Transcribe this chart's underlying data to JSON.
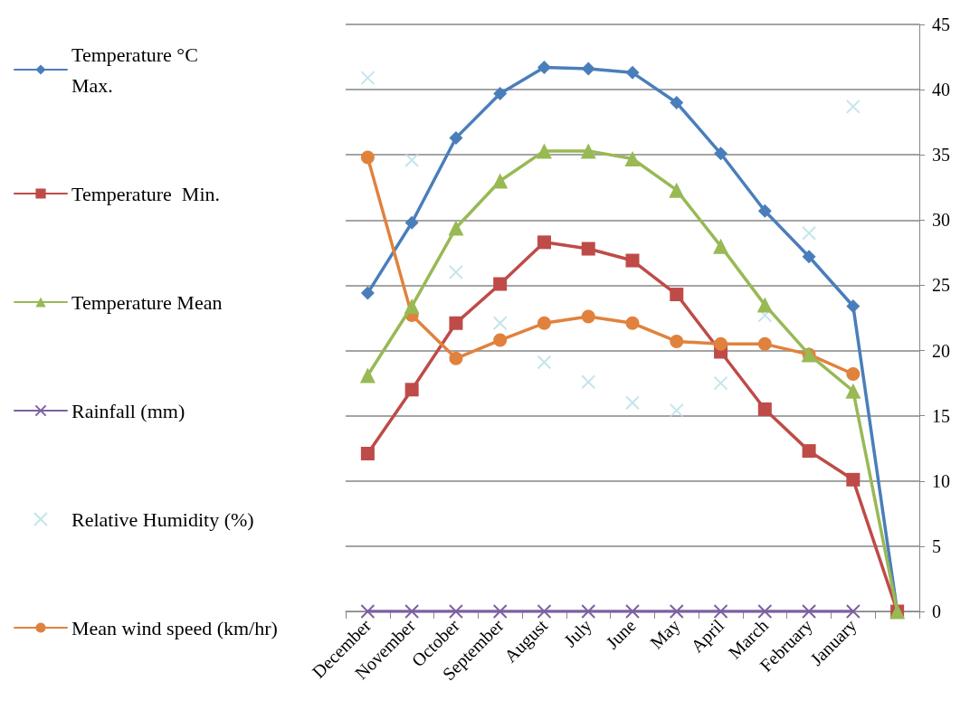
{
  "chart_data": {
    "type": "line",
    "categories": [
      "December",
      "November",
      "October",
      "September",
      "August",
      "July",
      "June",
      "May",
      "April",
      "March",
      "February",
      "January",
      null
    ],
    "ylim": [
      0,
      45
    ],
    "yticks": [
      0,
      5,
      10,
      15,
      20,
      25,
      30,
      35,
      40,
      45
    ],
    "grid": "y",
    "legend": "left",
    "series": [
      {
        "name": "Temperature °C\nMax.",
        "color": "#4a7ebb",
        "marker": "diamond",
        "values": [
          24.4,
          29.8,
          36.3,
          39.7,
          41.7,
          41.6,
          41.3,
          39.0,
          35.1,
          30.7,
          27.2,
          23.4,
          0
        ]
      },
      {
        "name": "Temperature  Min.",
        "color": "#be4b48",
        "marker": "square",
        "values": [
          12.1,
          17.0,
          22.1,
          25.1,
          28.3,
          27.8,
          26.9,
          24.3,
          19.9,
          15.5,
          12.3,
          10.1,
          0
        ]
      },
      {
        "name": "Temperature Mean",
        "color": "#98b954",
        "marker": "triangle",
        "values": [
          18.1,
          23.4,
          29.4,
          33.0,
          35.3,
          35.3,
          34.7,
          32.3,
          28.0,
          23.5,
          19.7,
          16.9,
          0
        ]
      },
      {
        "name": "Rainfall (mm)",
        "color": "#7d60a0",
        "marker": "cross",
        "values": [
          0,
          0,
          0,
          0,
          0,
          0,
          0,
          0,
          0,
          0,
          0,
          0,
          null
        ]
      },
      {
        "name": "Relative Humidity (%)",
        "color": "#b7dde8",
        "type": "scatter",
        "marker": "cross",
        "values": [
          40.9,
          34.6,
          26.0,
          22.1,
          19.1,
          17.6,
          16.0,
          15.4,
          17.5,
          22.7,
          29.0,
          38.7,
          null
        ]
      },
      {
        "name": "Mean wind speed (km/hr)",
        "color": "#e0823d",
        "marker": "circle",
        "values": [
          34.8,
          22.7,
          19.4,
          20.8,
          22.1,
          22.6,
          22.1,
          20.7,
          20.5,
          20.5,
          19.7,
          18.2,
          null
        ]
      }
    ]
  }
}
